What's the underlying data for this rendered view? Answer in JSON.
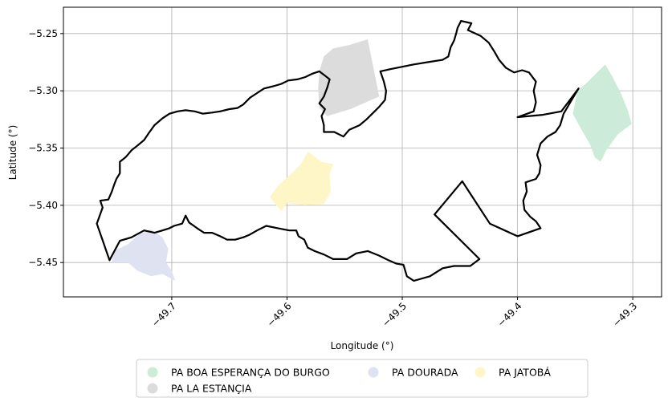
{
  "chart_data": {
    "type": "map",
    "xlabel": "Longitude (°)",
    "ylabel": "Latitude (°)",
    "xlim": [
      -49.794,
      -49.275
    ],
    "ylim": [
      -5.48,
      -5.227
    ],
    "x_ticks": [
      -49.7,
      -49.6,
      -49.5,
      -49.4,
      -49.3
    ],
    "x_tick_labels": [
      "−49.7",
      "−49.6",
      "−49.5",
      "−49.4",
      "−49.3"
    ],
    "y_ticks": [
      -5.25,
      -5.3,
      -5.35,
      -5.4,
      -5.45
    ],
    "y_tick_labels": [
      "−5.25",
      "−5.30",
      "−5.35",
      "−5.40",
      "−5.45"
    ],
    "grid": true,
    "legend_position": "bottom-center",
    "boundary": {
      "color": "#000000",
      "coords": [
        [
          -49.765,
          -5.416
        ],
        [
          -49.76,
          -5.402
        ],
        [
          -49.762,
          -5.396
        ],
        [
          -49.755,
          -5.395
        ],
        [
          -49.752,
          -5.388
        ],
        [
          -49.75,
          -5.382
        ],
        [
          -49.748,
          -5.377
        ],
        [
          -49.745,
          -5.372
        ],
        [
          -49.745,
          -5.362
        ],
        [
          -49.74,
          -5.358
        ],
        [
          -49.735,
          -5.352
        ],
        [
          -49.73,
          -5.348
        ],
        [
          -49.724,
          -5.343
        ],
        [
          -49.72,
          -5.337
        ],
        [
          -49.715,
          -5.33
        ],
        [
          -49.708,
          -5.324
        ],
        [
          -49.702,
          -5.32
        ],
        [
          -49.695,
          -5.318
        ],
        [
          -49.688,
          -5.317
        ],
        [
          -49.68,
          -5.318
        ],
        [
          -49.673,
          -5.32
        ],
        [
          -49.665,
          -5.319
        ],
        [
          -49.658,
          -5.318
        ],
        [
          -49.65,
          -5.316
        ],
        [
          -49.643,
          -5.315
        ],
        [
          -49.638,
          -5.312
        ],
        [
          -49.632,
          -5.306
        ],
        [
          -49.626,
          -5.302
        ],
        [
          -49.62,
          -5.298
        ],
        [
          -49.612,
          -5.296
        ],
        [
          -49.605,
          -5.294
        ],
        [
          -49.599,
          -5.291
        ],
        [
          -49.591,
          -5.29
        ],
        [
          -49.584,
          -5.288
        ],
        [
          -49.578,
          -5.285
        ],
        [
          -49.572,
          -5.283
        ],
        [
          -49.568,
          -5.286
        ],
        [
          -49.563,
          -5.29
        ],
        [
          -49.565,
          -5.297
        ],
        [
          -49.568,
          -5.305
        ],
        [
          -49.572,
          -5.311
        ],
        [
          -49.567,
          -5.316
        ],
        [
          -49.57,
          -5.322
        ],
        [
          -49.568,
          -5.33
        ],
        [
          -49.568,
          -5.336
        ],
        [
          -49.559,
          -5.336
        ],
        [
          -49.551,
          -5.34
        ],
        [
          -49.546,
          -5.334
        ],
        [
          -49.537,
          -5.33
        ],
        [
          -49.531,
          -5.325
        ],
        [
          -49.526,
          -5.32
        ],
        [
          -49.52,
          -5.314
        ],
        [
          -49.515,
          -5.308
        ],
        [
          -49.514,
          -5.3
        ],
        [
          -49.516,
          -5.292
        ],
        [
          -49.519,
          -5.283
        ],
        [
          -49.51,
          -5.281
        ],
        [
          -49.5,
          -5.279
        ],
        [
          -49.49,
          -5.277
        ],
        [
          -49.478,
          -5.275
        ],
        [
          -49.465,
          -5.273
        ],
        [
          -49.46,
          -5.27
        ],
        [
          -49.458,
          -5.262
        ],
        [
          -49.455,
          -5.256
        ],
        [
          -49.453,
          -5.249
        ],
        [
          -49.452,
          -5.245
        ],
        [
          -49.449,
          -5.239
        ],
        [
          -49.44,
          -5.241
        ],
        [
          -49.443,
          -5.247
        ],
        [
          -49.432,
          -5.252
        ],
        [
          -49.425,
          -5.258
        ],
        [
          -49.42,
          -5.266
        ],
        [
          -49.416,
          -5.273
        ],
        [
          -49.41,
          -5.28
        ],
        [
          -49.403,
          -5.284
        ],
        [
          -49.396,
          -5.282
        ],
        [
          -49.39,
          -5.284
        ],
        [
          -49.384,
          -5.292
        ],
        [
          -49.386,
          -5.3
        ],
        [
          -49.384,
          -5.31
        ],
        [
          -49.386,
          -5.318
        ],
        [
          -49.4,
          -5.323
        ],
        [
          -49.378,
          -5.321
        ],
        [
          -49.362,
          -5.318
        ],
        [
          -49.347,
          -5.298
        ],
        [
          -49.353,
          -5.308
        ],
        [
          -49.36,
          -5.32
        ],
        [
          -49.363,
          -5.33
        ],
        [
          -49.367,
          -5.336
        ],
        [
          -49.374,
          -5.34
        ],
        [
          -49.38,
          -5.346
        ],
        [
          -49.383,
          -5.356
        ],
        [
          -49.38,
          -5.365
        ],
        [
          -49.381,
          -5.372
        ],
        [
          -49.384,
          -5.377
        ],
        [
          -49.393,
          -5.38
        ],
        [
          -49.392,
          -5.388
        ],
        [
          -49.395,
          -5.396
        ],
        [
          -49.394,
          -5.404
        ],
        [
          -49.389,
          -5.41
        ],
        [
          -49.384,
          -5.414
        ],
        [
          -49.38,
          -5.42
        ],
        [
          -49.4,
          -5.427
        ],
        [
          -49.424,
          -5.416
        ],
        [
          -49.448,
          -5.379
        ],
        [
          -49.472,
          -5.408
        ],
        [
          -49.433,
          -5.447
        ],
        [
          -49.441,
          -5.453
        ],
        [
          -49.455,
          -5.453
        ],
        [
          -49.465,
          -5.455
        ],
        [
          -49.476,
          -5.462
        ],
        [
          -49.49,
          -5.466
        ],
        [
          -49.496,
          -5.462
        ],
        [
          -49.499,
          -5.452
        ],
        [
          -49.505,
          -5.451
        ],
        [
          -49.512,
          -5.448
        ],
        [
          -49.52,
          -5.444
        ],
        [
          -49.53,
          -5.44
        ],
        [
          -49.54,
          -5.442
        ],
        [
          -49.548,
          -5.447
        ],
        [
          -49.56,
          -5.447
        ],
        [
          -49.568,
          -5.443
        ],
        [
          -49.576,
          -5.44
        ],
        [
          -49.582,
          -5.437
        ],
        [
          -49.585,
          -5.43
        ],
        [
          -49.59,
          -5.427
        ],
        [
          -49.592,
          -5.422
        ],
        [
          -49.598,
          -5.422
        ],
        [
          -49.608,
          -5.42
        ],
        [
          -49.618,
          -5.418
        ],
        [
          -49.626,
          -5.422
        ],
        [
          -49.633,
          -5.426
        ],
        [
          -49.638,
          -5.428
        ],
        [
          -49.645,
          -5.43
        ],
        [
          -49.652,
          -5.43
        ],
        [
          -49.658,
          -5.427
        ],
        [
          -49.665,
          -5.424
        ],
        [
          -49.672,
          -5.424
        ],
        [
          -49.678,
          -5.42
        ],
        [
          -49.685,
          -5.415
        ],
        [
          -49.688,
          -5.409
        ],
        [
          -49.691,
          -5.416
        ],
        [
          -49.698,
          -5.418
        ],
        [
          -49.702,
          -5.42
        ],
        [
          -49.708,
          -5.422
        ],
        [
          -49.715,
          -5.424
        ],
        [
          -49.724,
          -5.422
        ],
        [
          -49.735,
          -5.428
        ],
        [
          -49.745,
          -5.431
        ],
        [
          -49.754,
          -5.448
        ],
        [
          -49.765,
          -5.416
        ]
      ]
    },
    "series": [
      {
        "name": "PA BOA ESPERANÇA DO BURGO",
        "color": "#cdebd9",
        "coords": [
          [
            -49.348,
            -5.3
          ],
          [
            -49.34,
            -5.293
          ],
          [
            -49.33,
            -5.283
          ],
          [
            -49.324,
            -5.277
          ],
          [
            -49.318,
            -5.287
          ],
          [
            -49.31,
            -5.303
          ],
          [
            -49.304,
            -5.318
          ],
          [
            -49.301,
            -5.329
          ],
          [
            -49.313,
            -5.338
          ],
          [
            -49.323,
            -5.352
          ],
          [
            -49.328,
            -5.362
          ],
          [
            -49.333,
            -5.358
          ],
          [
            -49.337,
            -5.347
          ],
          [
            -49.345,
            -5.333
          ],
          [
            -49.352,
            -5.32
          ]
        ]
      },
      {
        "name": "PA DOURADA",
        "color": "#dfe2f1",
        "coords": [
          [
            -49.752,
            -5.45
          ],
          [
            -49.738,
            -5.45
          ],
          [
            -49.73,
            -5.457
          ],
          [
            -49.718,
            -5.462
          ],
          [
            -49.708,
            -5.46
          ],
          [
            -49.697,
            -5.466
          ],
          [
            -49.7,
            -5.457
          ],
          [
            -49.705,
            -5.45
          ],
          [
            -49.703,
            -5.438
          ],
          [
            -49.708,
            -5.428
          ],
          [
            -49.718,
            -5.421
          ],
          [
            -49.728,
            -5.425
          ],
          [
            -49.738,
            -5.434
          ],
          [
            -49.75,
            -5.44
          ]
        ]
      },
      {
        "name": "PA JATOBÁ",
        "color": "#fff6c8",
        "coords": [
          [
            -49.615,
            -5.393
          ],
          [
            -49.608,
            -5.383
          ],
          [
            -49.598,
            -5.374
          ],
          [
            -49.588,
            -5.364
          ],
          [
            -49.582,
            -5.353
          ],
          [
            -49.57,
            -5.362
          ],
          [
            -49.56,
            -5.364
          ],
          [
            -49.563,
            -5.373
          ],
          [
            -49.562,
            -5.388
          ],
          [
            -49.568,
            -5.399
          ],
          [
            -49.585,
            -5.4
          ],
          [
            -49.6,
            -5.398
          ],
          [
            -49.605,
            -5.405
          ]
        ]
      },
      {
        "name": "PA LA ESTANÇIA",
        "color": "#dcdcdc",
        "coords": [
          [
            -49.572,
            -5.283
          ],
          [
            -49.568,
            -5.27
          ],
          [
            -49.56,
            -5.263
          ],
          [
            -49.546,
            -5.26
          ],
          [
            -49.53,
            -5.255
          ],
          [
            -49.52,
            -5.305
          ],
          [
            -49.545,
            -5.316
          ],
          [
            -49.565,
            -5.322
          ],
          [
            -49.572,
            -5.315
          ],
          [
            -49.573,
            -5.298
          ]
        ]
      }
    ]
  }
}
